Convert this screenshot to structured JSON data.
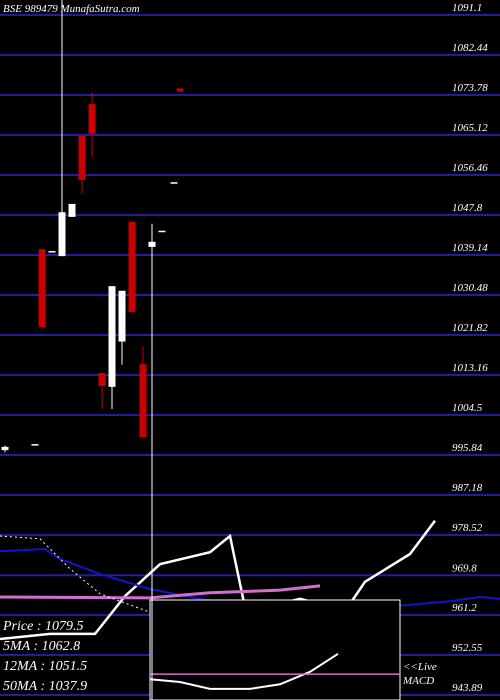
{
  "chart_data": {
    "type": "candlestick",
    "title": "BSE 989479 MunafaSutra.com",
    "background": "#000000",
    "grid": true,
    "grid_color": "#1f1f9e",
    "up_color": "#ffffff",
    "down_color": "#cc0000",
    "xlim": [
      0,
      50
    ],
    "ylim": [
      942.8,
      1094.35
    ],
    "yticks": [
      1091.1,
      1082.44,
      1073.78,
      1065.12,
      1056.46,
      1047.8,
      1039.14,
      1030.48,
      1021.82,
      1013.16,
      1004.5,
      995.84,
      987.18,
      978.52,
      969.8,
      961.2,
      952.55,
      943.89
    ],
    "candles": {
      "x": [
        0.5,
        3.5,
        4.2,
        5.2,
        6.2,
        7.2,
        8.2,
        9.2,
        10.2,
        11.2,
        12.2,
        13.2,
        14.3,
        15.2,
        16.2,
        17.4,
        18.0
      ],
      "open": [
        996.9,
        998.2,
        1040.4,
        1040.0,
        1038.9,
        1047.4,
        1064.9,
        1071.8,
        1013.6,
        1010.6,
        1020.4,
        1046.3,
        1015.5,
        1040.9,
        1044.4,
        1054.9,
        1075.2
      ],
      "high": [
        997.9,
        998.2,
        1040.4,
        1040.0,
        1094.4,
        1050.2,
        1064.9,
        1074.4,
        1013.6,
        1032.4,
        1031.4,
        1046.3,
        1019.4,
        1045.9,
        1044.4,
        1054.9,
        1075.2
      ],
      "low": [
        996.4,
        998.2,
        1023.5,
        1040.0,
        1038.9,
        1047.4,
        1052.4,
        1060.4,
        1005.8,
        1005.8,
        1015.4,
        1026.4,
        999.7,
        942.8,
        1044.4,
        1054.9,
        1074.6
      ],
      "close": [
        997.6,
        998.2,
        1023.5,
        1040.0,
        1048.4,
        1050.2,
        1055.4,
        1065.4,
        1010.8,
        1032.4,
        1031.4,
        1026.8,
        999.7,
        1042.0,
        1044.4,
        1054.9,
        1074.6
      ]
    },
    "lines": [
      {
        "color": "#ffffff",
        "width": 2.5,
        "x": [
          0,
          5,
          9.5,
          12.5,
          16,
          21,
          23,
          24.8,
          27,
          30,
          32,
          34.3,
          36.5,
          41,
          43.5
        ],
        "values": [
          956.0,
          957.1,
          957.1,
          965.3,
          972.2,
          974.8,
          978.3,
          959.7,
          963.1,
          964.7,
          963.6,
          961.4,
          968.4,
          974.4,
          981.6
        ]
      },
      {
        "color": "#1414c8",
        "width": 2,
        "x": [
          0,
          4.5,
          6,
          10,
          15,
          20,
          25,
          30,
          35,
          40,
          45,
          48,
          50
        ],
        "values": [
          975.0,
          975.5,
          973.3,
          970.1,
          966.8,
          964.7,
          963.0,
          962.5,
          962.1,
          963.2,
          964.2,
          965.1,
          964.7
        ]
      },
      {
        "color": "#d070d0",
        "width": 3,
        "x": [
          0,
          15,
          21,
          28,
          32
        ],
        "values": [
          965.1,
          964.9,
          966.0,
          966.6,
          967.5
        ]
      },
      {
        "color": "#ffffff",
        "width": 1,
        "dashed": true,
        "x": [
          0,
          4,
          7,
          10,
          15,
          20,
          25
        ],
        "values": [
          978.3,
          977.7,
          971.2,
          965.8,
          961.8,
          960.6,
          959.9
        ]
      },
      {
        "color": "#ffffff",
        "width": 2,
        "x": [
          15,
          18,
          21,
          25,
          28,
          31,
          33.8
        ],
        "values": [
          947.3,
          946.7,
          945.2,
          945.2,
          946.2,
          948.9,
          952.8
        ]
      },
      {
        "color": "#d070d0",
        "width": 1.5,
        "x": [
          15,
          40
        ],
        "values": [
          948.4,
          948.4
        ]
      }
    ],
    "legend": [
      "Price : 1079.5",
      "5MA : 1062.8",
      "12MA : 1051.5",
      "50MA : 1037.9"
    ],
    "macd_label": [
      "<<Live",
      "MACD"
    ]
  }
}
